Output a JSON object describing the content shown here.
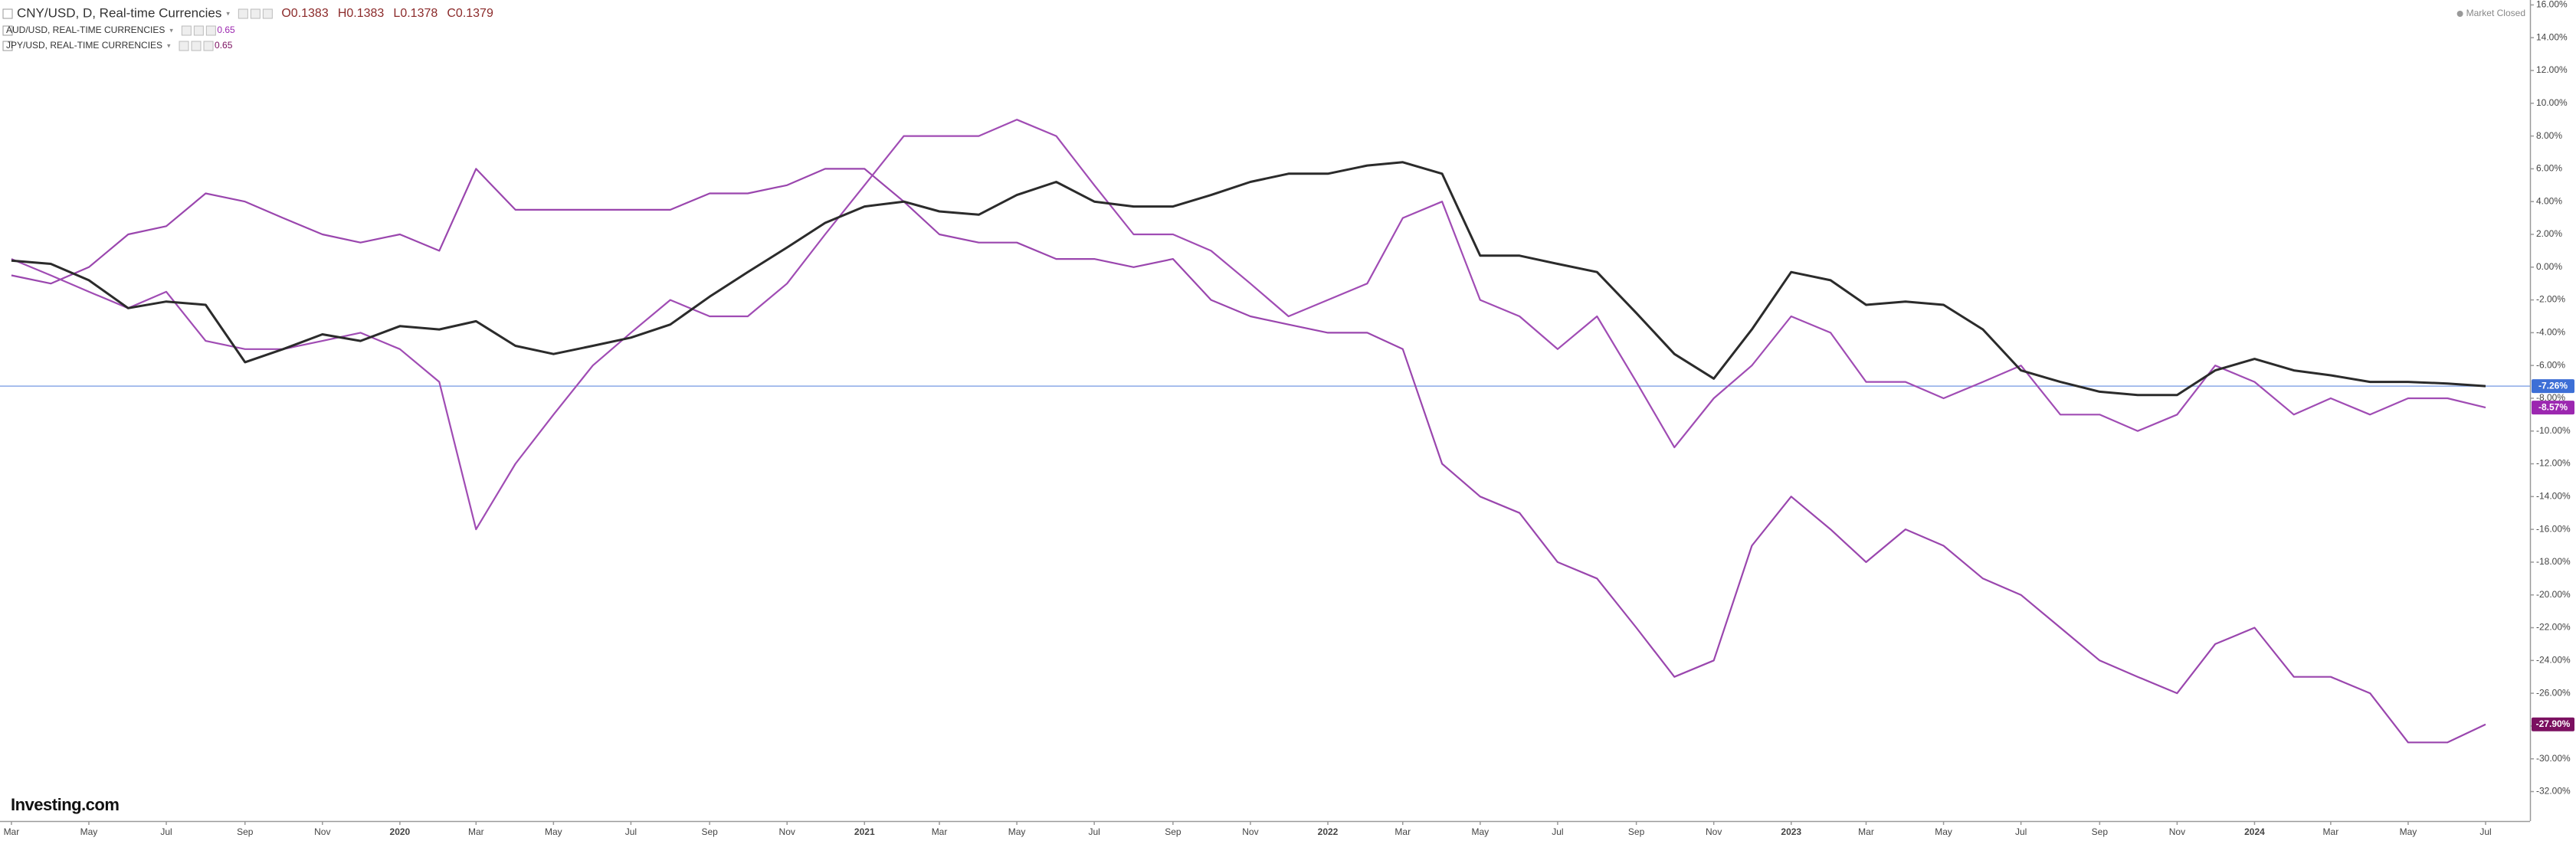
{
  "chart_data": {
    "type": "line",
    "status": "Market Closed",
    "brand": "Investing.com",
    "x": [
      "2019-03",
      "2019-04",
      "2019-05",
      "2019-06",
      "2019-07",
      "2019-08",
      "2019-09",
      "2019-10",
      "2019-11",
      "2019-12",
      "2020-01",
      "2020-02",
      "2020-03",
      "2020-04",
      "2020-05",
      "2020-06",
      "2020-07",
      "2020-08",
      "2020-09",
      "2020-10",
      "2020-11",
      "2020-12",
      "2021-01",
      "2021-02",
      "2021-03",
      "2021-04",
      "2021-05",
      "2021-06",
      "2021-07",
      "2021-08",
      "2021-09",
      "2021-10",
      "2021-11",
      "2021-12",
      "2022-01",
      "2022-02",
      "2022-03",
      "2022-04",
      "2022-05",
      "2022-06",
      "2022-07",
      "2022-08",
      "2022-09",
      "2022-10",
      "2022-11",
      "2022-12",
      "2023-01",
      "2023-02",
      "2023-03",
      "2023-04",
      "2023-05",
      "2023-06",
      "2023-07",
      "2023-08",
      "2023-09",
      "2023-10",
      "2023-11",
      "2023-12",
      "2024-01",
      "2024-02",
      "2024-03",
      "2024-04",
      "2024-05",
      "2024-06",
      "2024-07"
    ],
    "xlim": [
      "2019-02-20",
      "2024-08-05"
    ],
    "xticks": [
      {
        "value": "2019-03",
        "label": "Mar"
      },
      {
        "value": "2019-05",
        "label": "May"
      },
      {
        "value": "2019-07",
        "label": "Jul"
      },
      {
        "value": "2019-09",
        "label": "Sep"
      },
      {
        "value": "2019-11",
        "label": "Nov"
      },
      {
        "value": "2020-01",
        "label": "2020"
      },
      {
        "value": "2020-03",
        "label": "Mar"
      },
      {
        "value": "2020-05",
        "label": "May"
      },
      {
        "value": "2020-07",
        "label": "Jul"
      },
      {
        "value": "2020-09",
        "label": "Sep"
      },
      {
        "value": "2020-11",
        "label": "Nov"
      },
      {
        "value": "2021-01",
        "label": "2021"
      },
      {
        "value": "2021-03",
        "label": "Mar"
      },
      {
        "value": "2021-05",
        "label": "May"
      },
      {
        "value": "2021-07",
        "label": "Jul"
      },
      {
        "value": "2021-09",
        "label": "Sep"
      },
      {
        "value": "2021-11",
        "label": "Nov"
      },
      {
        "value": "2022-01",
        "label": "2022"
      },
      {
        "value": "2022-03",
        "label": "Mar"
      },
      {
        "value": "2022-05",
        "label": "May"
      },
      {
        "value": "2022-07",
        "label": "Jul"
      },
      {
        "value": "2022-09",
        "label": "Sep"
      },
      {
        "value": "2022-11",
        "label": "Nov"
      },
      {
        "value": "2023-01",
        "label": "2023"
      },
      {
        "value": "2023-03",
        "label": "Mar"
      },
      {
        "value": "2023-05",
        "label": "May"
      },
      {
        "value": "2023-07",
        "label": "Jul"
      },
      {
        "value": "2023-09",
        "label": "Sep"
      },
      {
        "value": "2023-11",
        "label": "Nov"
      },
      {
        "value": "2024-01",
        "label": "2024"
      },
      {
        "value": "2024-03",
        "label": "Mar"
      },
      {
        "value": "2024-05",
        "label": "May"
      },
      {
        "value": "2024-07",
        "label": "Jul"
      }
    ],
    "ylim": [
      -33.8,
      16.3
    ],
    "yticks": [
      {
        "value": 16,
        "label": "16.00%"
      },
      {
        "value": 14,
        "label": "14.00%"
      },
      {
        "value": 12,
        "label": "12.00%"
      },
      {
        "value": 10,
        "label": "10.00%"
      },
      {
        "value": 8,
        "label": "8.00%"
      },
      {
        "value": 6,
        "label": "6.00%"
      },
      {
        "value": 4,
        "label": "4.00%"
      },
      {
        "value": 2,
        "label": "2.00%"
      },
      {
        "value": 0,
        "label": "0.00%"
      },
      {
        "value": -2,
        "label": "-2.00%"
      },
      {
        "value": -4,
        "label": "-4.00%"
      },
      {
        "value": -6,
        "label": "-6.00%"
      },
      {
        "value": -8,
        "label": "-8.00%"
      },
      {
        "value": -10,
        "label": "-10.00%"
      },
      {
        "value": -12,
        "label": "-12.00%"
      },
      {
        "value": -14,
        "label": "-14.00%"
      },
      {
        "value": -16,
        "label": "-16.00%"
      },
      {
        "value": -18,
        "label": "-18.00%"
      },
      {
        "value": -20,
        "label": "-20.00%"
      },
      {
        "value": -22,
        "label": "-22.00%"
      },
      {
        "value": -24,
        "label": "-24.00%"
      },
      {
        "value": -26,
        "label": "-26.00%"
      },
      {
        "value": -28,
        "label": "-28.00%"
      },
      {
        "value": -30,
        "label": "-30.00%"
      },
      {
        "value": -32,
        "label": "-32.00%"
      }
    ],
    "series": [
      {
        "name": "CNY/USD, D, Real-time Currencies",
        "color": "#2b2b2b",
        "label_color": "#3d6fd6",
        "price_line": true,
        "quote": [
          "O0.1383",
          "H0.1383",
          "L0.1378",
          "C0.1379"
        ],
        "last_value": {
          "value": -7.26,
          "label": "-7.26%"
        },
        "values": [
          0.4,
          0.2,
          -0.8,
          -2.5,
          -2.1,
          -2.3,
          -5.8,
          -5.0,
          -4.1,
          -4.5,
          -3.6,
          -3.8,
          -3.3,
          -4.8,
          -5.3,
          -4.8,
          -4.3,
          -3.5,
          -1.8,
          -0.3,
          1.2,
          2.7,
          3.7,
          4.0,
          3.4,
          3.2,
          4.4,
          5.2,
          4.0,
          3.7,
          3.7,
          4.4,
          5.2,
          5.7,
          5.7,
          6.2,
          6.4,
          5.7,
          0.7,
          0.7,
          0.2,
          -0.3,
          -2.8,
          -5.3,
          -6.8,
          -3.8,
          -0.3,
          -0.8,
          -2.3,
          -2.1,
          -2.3,
          -3.8,
          -6.3,
          -7.0,
          -7.6,
          -7.8,
          -7.8,
          -6.3,
          -5.6,
          -6.3,
          -6.6,
          -7.0,
          -7.0,
          -7.1,
          -7.26
        ]
      },
      {
        "name": "AUD/USD, REAL-TIME CURRENCIES",
        "color": "#a04cb4",
        "label_color": "#9c27b0",
        "price": 0.65,
        "last_value": {
          "value": -8.57,
          "label": "-8.57%"
        },
        "values": [
          0.5,
          -0.5,
          -1.5,
          -2.5,
          -1.5,
          -4.5,
          -5,
          -5,
          -4.5,
          -4,
          -5,
          -7,
          -16,
          -12,
          -9,
          -6,
          -4,
          -2,
          -3,
          -3,
          -1,
          2,
          5,
          8,
          8,
          8,
          9,
          8,
          5,
          2,
          2,
          1,
          -1,
          -3,
          -2,
          -1,
          3,
          4,
          -2,
          -3,
          -5,
          -3,
          -7,
          -11,
          -8,
          -6,
          -3,
          -4,
          -7,
          -7,
          -8,
          -7,
          -6,
          -9,
          -9,
          -10,
          -9,
          -6,
          -7,
          -9,
          -8,
          -9,
          -8,
          -8,
          -8.57
        ]
      },
      {
        "name": "JPY/USD, REAL-TIME CURRENCIES",
        "color": "#9a46ae",
        "label_color": "#7b1060",
        "price": 0.65,
        "last_value": {
          "value": -27.9,
          "label": "-27.90%"
        },
        "values": [
          -0.5,
          -1,
          0,
          2,
          2.5,
          4.5,
          4,
          3,
          2,
          1.5,
          2,
          1,
          6,
          3.5,
          3.5,
          3.5,
          3.5,
          3.5,
          4.5,
          4.5,
          5,
          6,
          6,
          4,
          2,
          1.5,
          1.5,
          0.5,
          0.5,
          0,
          0.5,
          -2,
          -3,
          -3.5,
          -4,
          -4,
          -5,
          -12,
          -14,
          -15,
          -18,
          -19,
          -22,
          -25,
          -24,
          -17,
          -14,
          -16,
          -18,
          -16,
          -17,
          -19,
          -20,
          -22,
          -24,
          -25,
          -26,
          -23,
          -22,
          -25,
          -25,
          -26,
          -29,
          -29,
          -27.9
        ]
      }
    ]
  }
}
